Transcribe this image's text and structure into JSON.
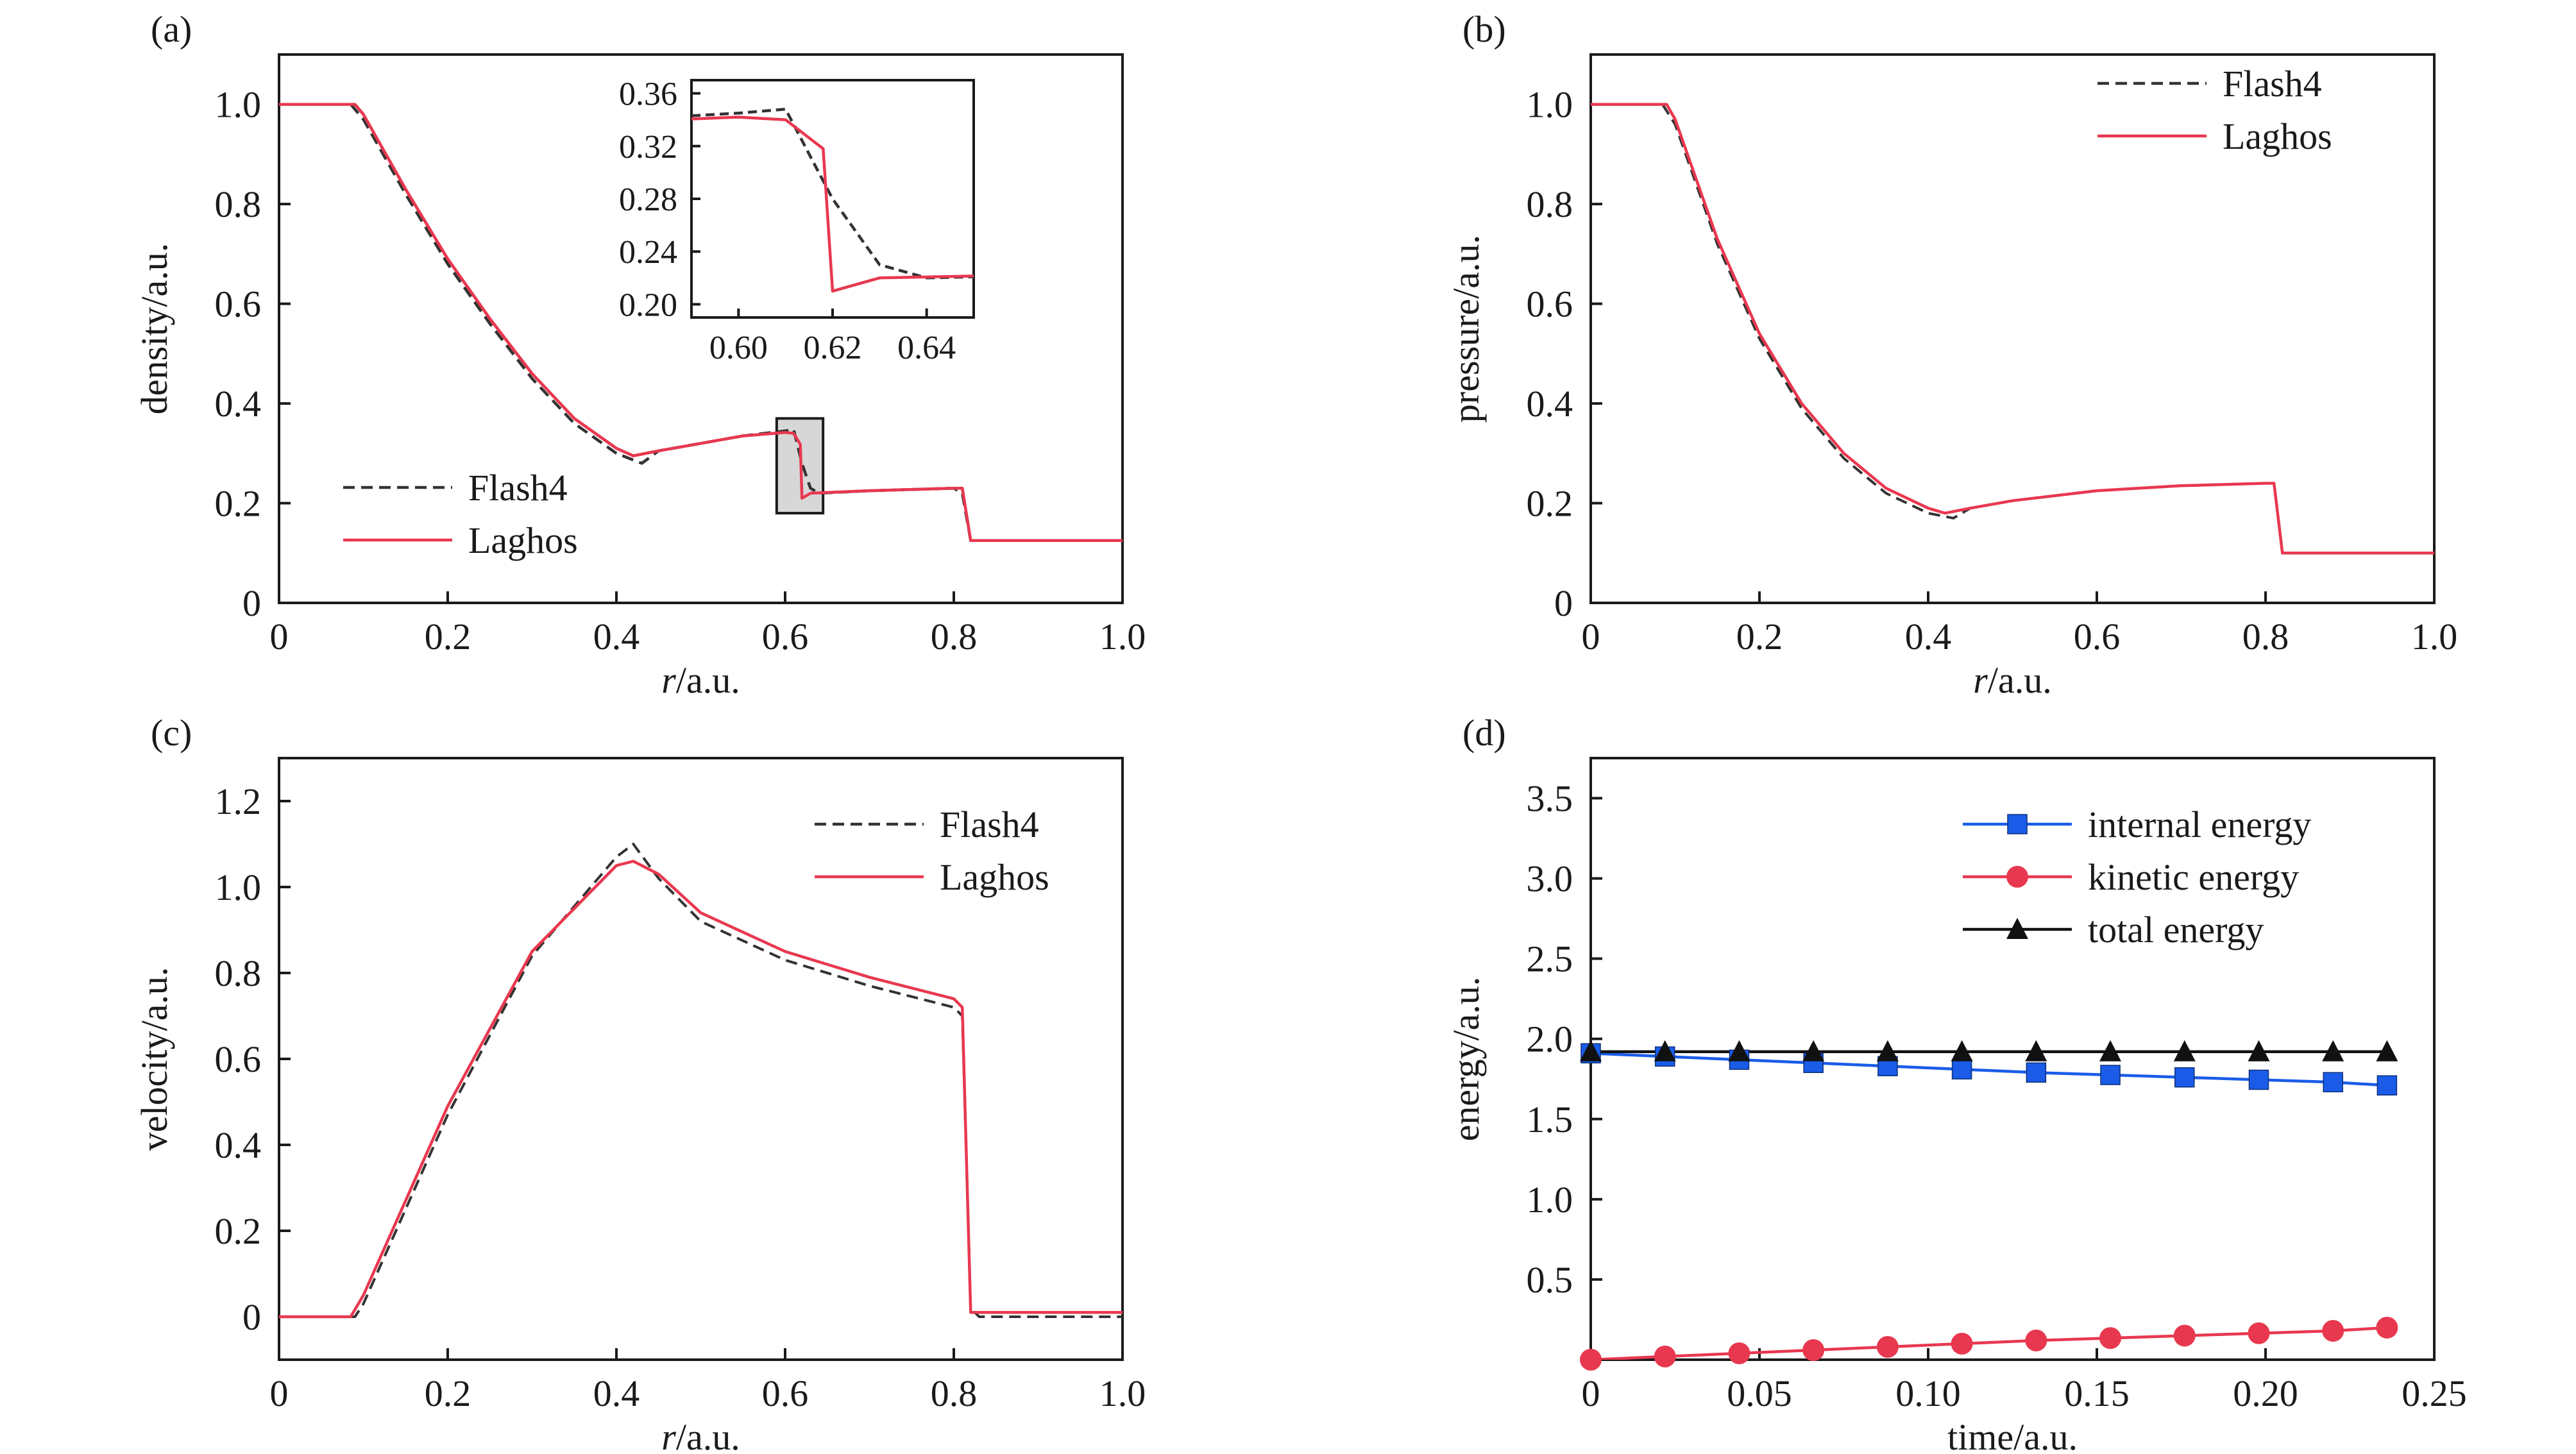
{
  "chart_data": [
    {
      "panel_label": "(a)",
      "type": "line",
      "xlabel_italic": "r",
      "xlabel_rest": "/a.u.",
      "ylabel": "density/a.u.",
      "xlim": [
        0,
        1.0
      ],
      "ylim": [
        0,
        1.1
      ],
      "xticks": [
        "0",
        "0.2",
        "0.4",
        "0.6",
        "0.8",
        "1.0"
      ],
      "yticks": [
        "0",
        "0.2",
        "0.4",
        "0.6",
        "0.8",
        "1.0"
      ],
      "legend_position": "bottom-left",
      "series": [
        {
          "name": "Flash4",
          "color": "#333333",
          "dash": true,
          "x": [
            0,
            0.085,
            0.1,
            0.15,
            0.2,
            0.25,
            0.3,
            0.35,
            0.4,
            0.43,
            0.45,
            0.5,
            0.55,
            0.6,
            0.61,
            0.62,
            0.63,
            0.64,
            0.7,
            0.8,
            0.81,
            0.82,
            1.0
          ],
          "y": [
            1.0,
            1.0,
            0.97,
            0.82,
            0.68,
            0.56,
            0.45,
            0.36,
            0.3,
            0.28,
            0.305,
            0.32,
            0.335,
            0.345,
            0.348,
            0.28,
            0.23,
            0.22,
            0.225,
            0.23,
            0.22,
            0.125,
            0.125
          ]
        },
        {
          "name": "Laghos",
          "color": "#e8384f",
          "dash": false,
          "x": [
            0,
            0.09,
            0.1,
            0.15,
            0.2,
            0.25,
            0.3,
            0.35,
            0.4,
            0.42,
            0.45,
            0.5,
            0.55,
            0.6,
            0.61,
            0.618,
            0.62,
            0.625,
            0.63,
            0.7,
            0.8,
            0.81,
            0.82,
            1.0
          ],
          "y": [
            1.0,
            1.0,
            0.98,
            0.83,
            0.69,
            0.57,
            0.46,
            0.37,
            0.31,
            0.295,
            0.305,
            0.32,
            0.335,
            0.342,
            0.34,
            0.318,
            0.21,
            0.215,
            0.22,
            0.225,
            0.23,
            0.23,
            0.125,
            0.125
          ]
        }
      ],
      "inset": {
        "xlim": [
          0.59,
          0.65
        ],
        "ylim": [
          0.19,
          0.37
        ],
        "xticks": [
          "0.60",
          "0.62",
          "0.64"
        ],
        "yticks": [
          "0.20",
          "0.24",
          "0.28",
          "0.32",
          "0.36"
        ]
      },
      "zoom_box": {
        "x": [
          0.59,
          0.645
        ],
        "y": [
          0.18,
          0.37
        ]
      }
    },
    {
      "panel_label": "(b)",
      "type": "line",
      "xlabel_italic": "r",
      "xlabel_rest": "/a.u.",
      "ylabel": "pressure/a.u.",
      "xlim": [
        0,
        1.0
      ],
      "ylim": [
        0,
        1.1
      ],
      "xticks": [
        "0",
        "0.2",
        "0.4",
        "0.6",
        "0.8",
        "1.0"
      ],
      "yticks": [
        "0",
        "0.2",
        "0.4",
        "0.6",
        "0.8",
        "1.0"
      ],
      "legend_position": "top-right",
      "series": [
        {
          "name": "Flash4",
          "color": "#333333",
          "dash": true,
          "x": [
            0,
            0.085,
            0.1,
            0.15,
            0.2,
            0.25,
            0.3,
            0.35,
            0.4,
            0.43,
            0.45,
            0.5,
            0.6,
            0.7,
            0.8,
            0.81,
            0.82,
            1.0
          ],
          "y": [
            1.0,
            1.0,
            0.96,
            0.72,
            0.53,
            0.39,
            0.29,
            0.22,
            0.18,
            0.17,
            0.19,
            0.205,
            0.225,
            0.235,
            0.24,
            0.24,
            0.1,
            0.1
          ]
        },
        {
          "name": "Laghos",
          "color": "#e8384f",
          "dash": false,
          "x": [
            0,
            0.09,
            0.1,
            0.15,
            0.2,
            0.25,
            0.3,
            0.35,
            0.4,
            0.42,
            0.45,
            0.5,
            0.6,
            0.7,
            0.8,
            0.81,
            0.82,
            1.0
          ],
          "y": [
            1.0,
            1.0,
            0.97,
            0.73,
            0.54,
            0.4,
            0.3,
            0.23,
            0.19,
            0.18,
            0.19,
            0.205,
            0.225,
            0.235,
            0.24,
            0.24,
            0.1,
            0.1
          ]
        }
      ]
    },
    {
      "panel_label": "(c)",
      "type": "line",
      "xlabel_italic": "r",
      "xlabel_rest": "/a.u.",
      "ylabel": "velocity/a.u.",
      "xlim": [
        0,
        1.0
      ],
      "ylim": [
        -0.1,
        1.3
      ],
      "xticks": [
        "0",
        "0.2",
        "0.4",
        "0.6",
        "0.8",
        "1.0"
      ],
      "yticks": [
        "0",
        "0.2",
        "0.4",
        "0.6",
        "0.8",
        "1.0",
        "1.2"
      ],
      "legend_position": "top-right",
      "series": [
        {
          "name": "Flash4",
          "color": "#333333",
          "dash": true,
          "x": [
            0,
            0.09,
            0.1,
            0.15,
            0.2,
            0.3,
            0.4,
            0.42,
            0.45,
            0.5,
            0.6,
            0.7,
            0.8,
            0.81,
            0.82,
            0.83,
            1.0
          ],
          "y": [
            0.0,
            0.0,
            0.03,
            0.25,
            0.47,
            0.84,
            1.07,
            1.1,
            1.02,
            0.92,
            0.83,
            0.77,
            0.72,
            0.7,
            0.02,
            0.0,
            0.0
          ]
        },
        {
          "name": "Laghos",
          "color": "#e8384f",
          "dash": false,
          "x": [
            0,
            0.085,
            0.1,
            0.15,
            0.2,
            0.3,
            0.4,
            0.42,
            0.45,
            0.5,
            0.6,
            0.7,
            0.8,
            0.81,
            0.82,
            0.83,
            1.0
          ],
          "y": [
            0.0,
            0.0,
            0.05,
            0.27,
            0.49,
            0.85,
            1.05,
            1.06,
            1.03,
            0.94,
            0.85,
            0.79,
            0.74,
            0.72,
            0.01,
            0.01,
            0.01
          ]
        }
      ]
    },
    {
      "panel_label": "(d)",
      "type": "line",
      "xlabel": "time/a.u.",
      "ylabel": "energy/a.u.",
      "xlim": [
        0,
        0.25
      ],
      "ylim": [
        0,
        3.75
      ],
      "xticks": [
        "0",
        "0.05",
        "0.10",
        "0.15",
        "0.20",
        "0.25"
      ],
      "yticks": [
        "0.5",
        "1.0",
        "1.5",
        "2.0",
        "2.5",
        "3.0",
        "3.5"
      ],
      "legend_position": "top-right",
      "series": [
        {
          "name": "internal energy",
          "color": "#1a5ce8",
          "marker": "square",
          "x": [
            0,
            0.022,
            0.044,
            0.066,
            0.088,
            0.11,
            0.132,
            0.154,
            0.176,
            0.198,
            0.22,
            0.236
          ],
          "y": [
            1.91,
            1.89,
            1.87,
            1.85,
            1.83,
            1.81,
            1.79,
            1.775,
            1.76,
            1.745,
            1.73,
            1.71
          ]
        },
        {
          "name": "kinetic energy",
          "color": "#e8384f",
          "marker": "circle",
          "x": [
            0,
            0.022,
            0.044,
            0.066,
            0.088,
            0.11,
            0.132,
            0.154,
            0.176,
            0.198,
            0.22,
            0.236
          ],
          "y": [
            0.0,
            0.02,
            0.04,
            0.06,
            0.08,
            0.1,
            0.12,
            0.135,
            0.15,
            0.165,
            0.18,
            0.2
          ]
        },
        {
          "name": "total energy",
          "color": "#111111",
          "marker": "triangle",
          "x": [
            0,
            0.022,
            0.044,
            0.066,
            0.088,
            0.11,
            0.132,
            0.154,
            0.176,
            0.198,
            0.22,
            0.236
          ],
          "y": [
            1.92,
            1.92,
            1.92,
            1.92,
            1.92,
            1.92,
            1.92,
            1.92,
            1.92,
            1.92,
            1.92,
            1.92
          ]
        }
      ]
    }
  ]
}
